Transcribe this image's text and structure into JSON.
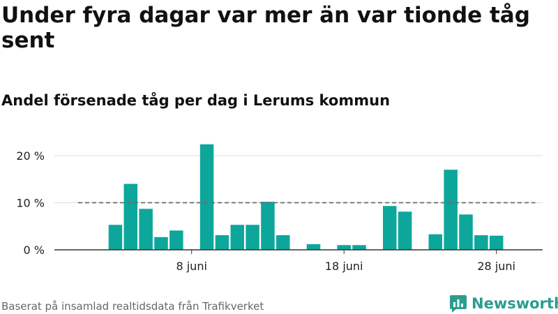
{
  "title": "Under fyra dagar var mer än var tionde tåg sent",
  "subtitle": "Andel försenade tåg per dag i Lerums kommun",
  "footer": "Baserat på insamlad realtidsdata från Trafikverket",
  "brand": "Newsworthy",
  "colors": {
    "bar": "#0ca79a",
    "reference": "#6b6b6b",
    "grid": "#dddddd",
    "axis": "#333333",
    "brand": "#2a9d8f"
  },
  "chart_data": {
    "type": "bar",
    "x": [
      1,
      2,
      3,
      4,
      5,
      6,
      7,
      8,
      9,
      10,
      11,
      12,
      13,
      14,
      15,
      16,
      17,
      18,
      19,
      20,
      21,
      22,
      23,
      24,
      25,
      26,
      27,
      28,
      29,
      30
    ],
    "values": [
      0,
      0,
      5.3,
      14.0,
      8.7,
      2.7,
      4.1,
      0,
      22.4,
      3.1,
      5.3,
      5.3,
      10.2,
      3.1,
      0,
      1.2,
      0,
      1.0,
      1.0,
      0,
      9.3,
      8.1,
      0,
      3.3,
      17.0,
      7.5,
      3.1,
      3.0,
      0,
      0
    ],
    "reference_line": 10,
    "yticks": [
      0,
      10,
      20
    ],
    "ytick_labels": [
      "0 %",
      "10 %",
      "20 %"
    ],
    "ylim": [
      0,
      24
    ],
    "xticks": [
      8,
      18,
      28
    ],
    "xtick_labels": [
      "8 juni",
      "18 juni",
      "28 juni"
    ],
    "grid": true
  }
}
